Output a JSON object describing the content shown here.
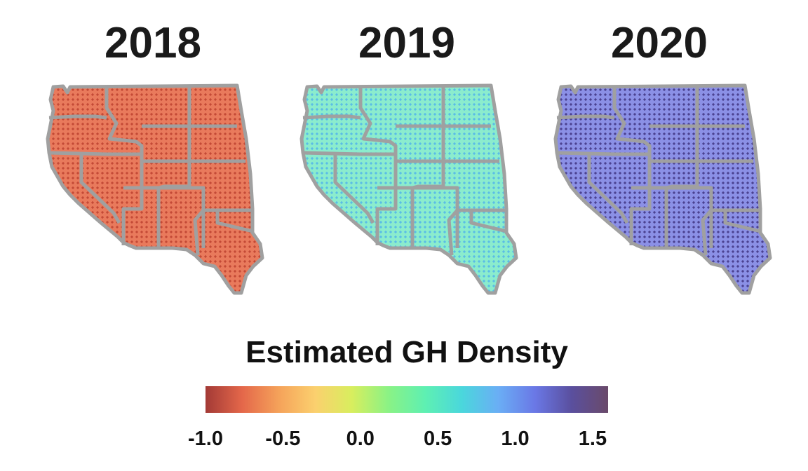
{
  "panels": [
    {
      "year": "2018",
      "base_color": "#e56b4e",
      "dot_color": "#c0392b"
    },
    {
      "year": "2019",
      "base_color": "#7fe7c8",
      "dot_color": "#55b8e8"
    },
    {
      "year": "2020",
      "base_color": "#7a7ee0",
      "dot_color": "#4a3f8c"
    }
  ],
  "legend": {
    "title": "Estimated GH Density",
    "min": -1.0,
    "max": 1.6,
    "ticks": [
      "-1.0",
      "-0.5",
      "0.0",
      "0.5",
      "1.0",
      "1.5"
    ],
    "colorscale": [
      "#a33a36",
      "#e4674a",
      "#f5a25a",
      "#fbd06e",
      "#d8ee5e",
      "#8af285",
      "#5ef0b2",
      "#4ad7dc",
      "#6aaef5",
      "#6a78e6",
      "#5a4f9e",
      "#6a4a6a"
    ]
  },
  "state_border_color": "#a0a0a0"
}
